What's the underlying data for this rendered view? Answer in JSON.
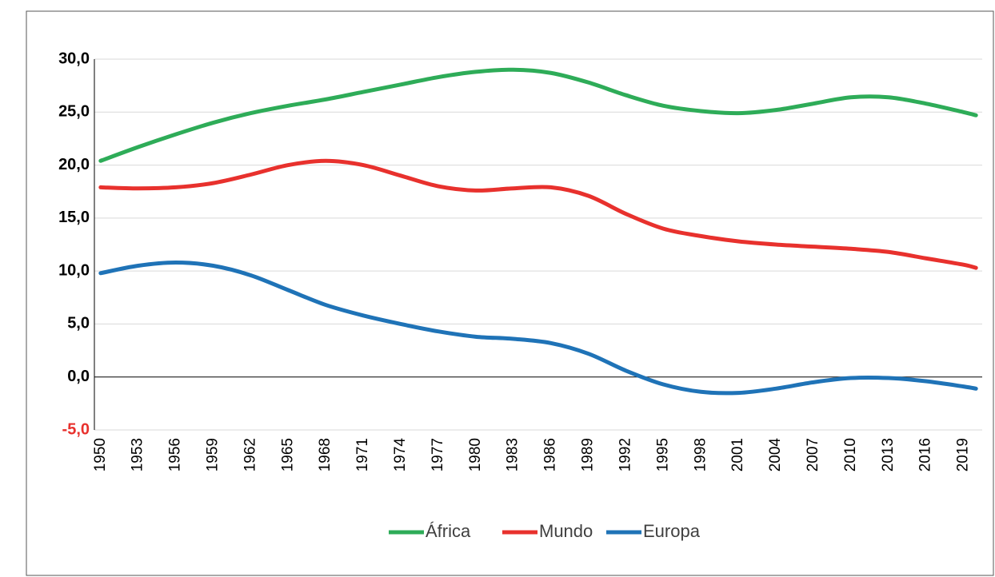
{
  "chart_data": {
    "type": "line",
    "x": [
      1950,
      1953,
      1956,
      1959,
      1962,
      1965,
      1968,
      1971,
      1974,
      1977,
      1980,
      1983,
      1986,
      1989,
      1992,
      1995,
      1998,
      2001,
      2004,
      2007,
      2010,
      2013,
      2016,
      2019,
      2020
    ],
    "series": [
      {
        "name": "África",
        "color": "#2eac58",
        "values": [
          20.4,
          21.7,
          22.9,
          24.0,
          24.9,
          25.6,
          26.2,
          26.9,
          27.6,
          28.3,
          28.8,
          29.0,
          28.7,
          27.8,
          26.6,
          25.6,
          25.1,
          24.9,
          25.2,
          25.8,
          26.4,
          26.4,
          25.8,
          25.0,
          24.7
        ]
      },
      {
        "name": "Mundo",
        "color": "#e8312d",
        "values": [
          17.9,
          17.8,
          17.9,
          18.3,
          19.1,
          20.0,
          20.4,
          20.0,
          19.0,
          18.0,
          17.6,
          17.8,
          17.9,
          17.1,
          15.4,
          14.0,
          13.3,
          12.8,
          12.5,
          12.3,
          12.1,
          11.8,
          11.2,
          10.6,
          10.3
        ]
      },
      {
        "name": "Europa",
        "color": "#1f73b7",
        "values": [
          9.8,
          10.5,
          10.8,
          10.5,
          9.6,
          8.2,
          6.8,
          5.8,
          5.0,
          4.3,
          3.8,
          3.6,
          3.2,
          2.2,
          0.6,
          -0.7,
          -1.4,
          -1.5,
          -1.1,
          -0.5,
          -0.1,
          -0.1,
          -0.4,
          -0.9,
          -1.1
        ]
      }
    ],
    "xlim": [
      1949.5,
      2020.5
    ],
    "xticks": [
      1950,
      1953,
      1956,
      1959,
      1962,
      1965,
      1968,
      1971,
      1974,
      1977,
      1980,
      1983,
      1986,
      1989,
      1992,
      1995,
      1998,
      2001,
      2004,
      2007,
      2010,
      2013,
      2016,
      2019
    ],
    "ylim": [
      -5,
      30
    ],
    "yticks": [
      {
        "value": -5,
        "label": "-5,0"
      },
      {
        "value": 0,
        "label": "0,0"
      },
      {
        "value": 5,
        "label": "5,0"
      },
      {
        "value": 10,
        "label": "10,0"
      },
      {
        "value": 15,
        "label": "15,0"
      },
      {
        "value": 20,
        "label": "20,0"
      },
      {
        "value": 25,
        "label": "25,0"
      },
      {
        "value": 30,
        "label": "30,0"
      }
    ],
    "negative_tick_color": "#e8312d",
    "grid": true,
    "legend": "bottom"
  }
}
